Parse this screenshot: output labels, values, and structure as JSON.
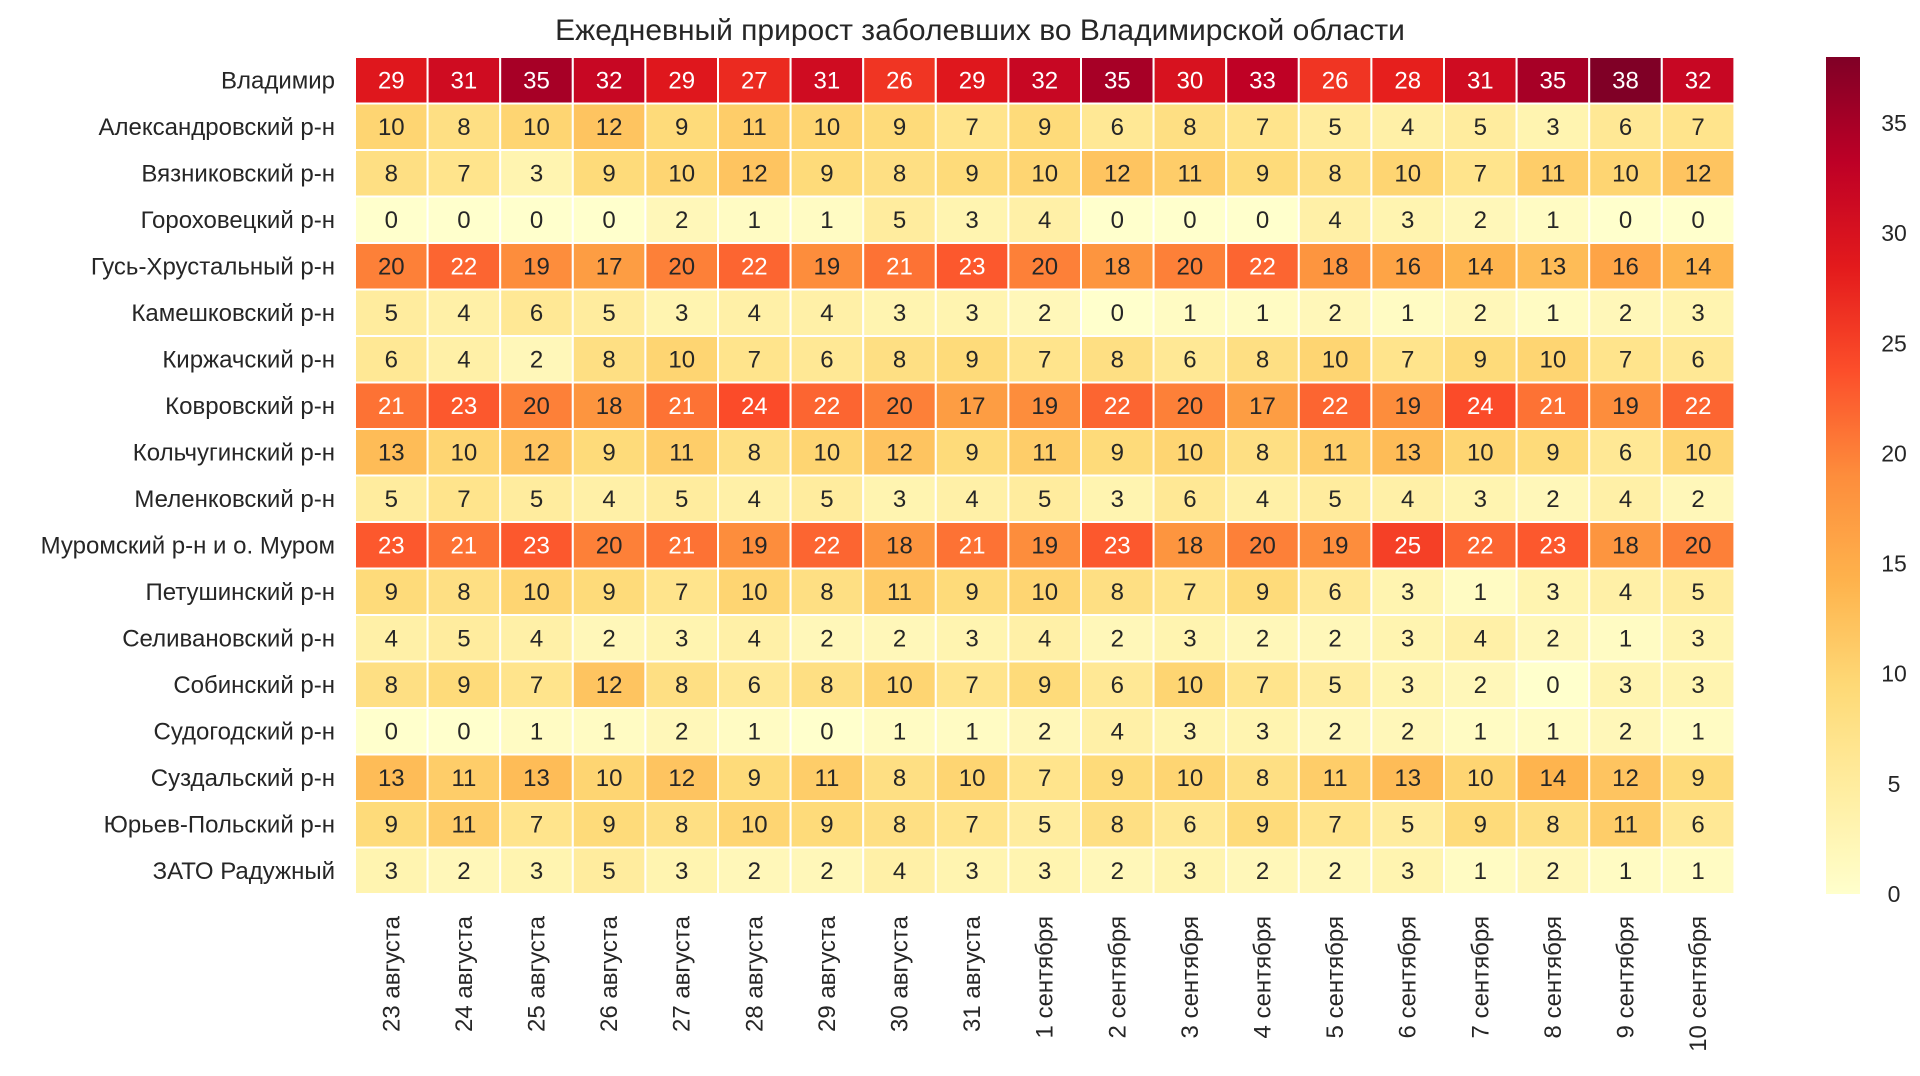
{
  "chart_data": {
    "type": "heatmap",
    "title": "Ежедневный прирост заболевших во Владимирской области",
    "xlabel": "",
    "ylabel": "",
    "colormap": "YlOrRd",
    "colormap_stops": [
      "#ffffcc",
      "#ffeda0",
      "#fed976",
      "#feb24c",
      "#fd8d3c",
      "#fc4e2a",
      "#e31a1c",
      "#bd0026",
      "#800026"
    ],
    "vmin": 0,
    "vmax": 38,
    "colorbar_ticks": [
      0,
      5,
      10,
      15,
      20,
      25,
      30,
      35
    ],
    "columns": [
      "23 августа",
      "24 августа",
      "25 августа",
      "26 августа",
      "27 августа",
      "28 августа",
      "29 августа",
      "30 августа",
      "31 августа",
      "1 сентября",
      "2 сентября",
      "3 сентября",
      "4 сентября",
      "5 сентября",
      "6 сентября",
      "7 сентября",
      "8 сентября",
      "9 сентября",
      "10 сентября"
    ],
    "rows": [
      "Владимир",
      "Александровский р-н",
      "Вязниковский р-н",
      "Гороховецкий р-н",
      "Гусь-Хрустальный р-н",
      "Камешковский р-н",
      "Киржачский р-н",
      "Ковровский р-н",
      "Кольчугинский р-н",
      "Меленковский р-н",
      "Муромский р-н и о. Муром",
      "Петушинский р-н",
      "Селивановский р-н",
      "Собинский р-н",
      "Судогодский р-н",
      "Суздальский р-н",
      "Юрьев-Польский р-н",
      "ЗАТО Радужный"
    ],
    "values": [
      [
        29,
        31,
        35,
        32,
        29,
        27,
        31,
        26,
        29,
        32,
        35,
        30,
        33,
        26,
        28,
        31,
        35,
        38,
        32
      ],
      [
        10,
        8,
        10,
        12,
        9,
        11,
        10,
        9,
        7,
        9,
        6,
        8,
        7,
        5,
        4,
        5,
        3,
        6,
        7
      ],
      [
        8,
        7,
        3,
        9,
        10,
        12,
        9,
        8,
        9,
        10,
        12,
        11,
        9,
        8,
        10,
        7,
        11,
        10,
        12
      ],
      [
        0,
        0,
        0,
        0,
        2,
        1,
        1,
        5,
        3,
        4,
        0,
        0,
        0,
        4,
        3,
        2,
        1,
        0,
        0
      ],
      [
        20,
        22,
        19,
        17,
        20,
        22,
        19,
        21,
        23,
        20,
        18,
        20,
        22,
        18,
        16,
        14,
        13,
        16,
        14
      ],
      [
        5,
        4,
        6,
        5,
        3,
        4,
        4,
        3,
        3,
        2,
        0,
        1,
        1,
        2,
        1,
        2,
        1,
        2,
        3
      ],
      [
        6,
        4,
        2,
        8,
        10,
        7,
        6,
        8,
        9,
        7,
        8,
        6,
        8,
        10,
        7,
        9,
        10,
        7,
        6
      ],
      [
        21,
        23,
        20,
        18,
        21,
        24,
        22,
        20,
        17,
        19,
        22,
        20,
        17,
        22,
        19,
        24,
        21,
        19,
        22
      ],
      [
        13,
        10,
        12,
        9,
        11,
        8,
        10,
        12,
        9,
        11,
        9,
        10,
        8,
        11,
        13,
        10,
        9,
        6,
        10
      ],
      [
        5,
        7,
        5,
        4,
        5,
        4,
        5,
        3,
        4,
        5,
        3,
        6,
        4,
        5,
        4,
        3,
        2,
        4,
        2
      ],
      [
        23,
        21,
        23,
        20,
        21,
        19,
        22,
        18,
        21,
        19,
        23,
        18,
        20,
        19,
        25,
        22,
        23,
        18,
        20
      ],
      [
        9,
        8,
        10,
        9,
        7,
        10,
        8,
        11,
        9,
        10,
        8,
        7,
        9,
        6,
        3,
        1,
        3,
        4,
        5
      ],
      [
        4,
        5,
        4,
        2,
        3,
        4,
        2,
        2,
        3,
        4,
        2,
        3,
        2,
        2,
        3,
        4,
        2,
        1,
        3
      ],
      [
        8,
        9,
        7,
        12,
        8,
        6,
        8,
        10,
        7,
        9,
        6,
        10,
        7,
        5,
        3,
        2,
        0,
        3,
        3
      ],
      [
        0,
        0,
        1,
        1,
        2,
        1,
        0,
        1,
        1,
        2,
        4,
        3,
        3,
        2,
        2,
        1,
        1,
        2,
        1
      ],
      [
        13,
        11,
        13,
        10,
        12,
        9,
        11,
        8,
        10,
        7,
        9,
        10,
        8,
        11,
        13,
        10,
        14,
        12,
        9
      ],
      [
        9,
        11,
        7,
        9,
        8,
        10,
        9,
        8,
        7,
        5,
        8,
        6,
        9,
        7,
        5,
        9,
        8,
        11,
        6
      ],
      [
        3,
        2,
        3,
        5,
        3,
        2,
        2,
        4,
        3,
        3,
        2,
        3,
        2,
        2,
        3,
        1,
        2,
        1,
        1
      ]
    ]
  }
}
